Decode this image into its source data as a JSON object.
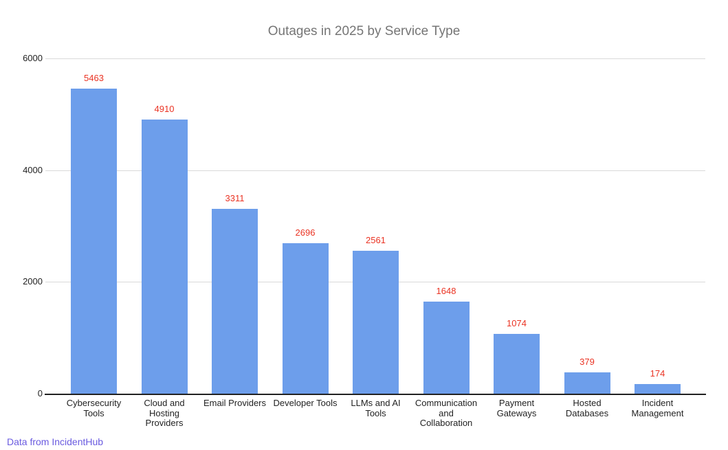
{
  "chart_data": {
    "type": "bar",
    "title": "Outages in 2025 by Service Type",
    "categories": [
      "Cybersecurity Tools",
      "Cloud and Hosting Providers",
      "Email Providers",
      "Developer Tools",
      "LLMs and AI Tools",
      "Communication and Collaboration",
      "Payment Gateways",
      "Hosted Databases",
      "Incident Management"
    ],
    "category_lines": [
      [
        "Cybersecurity",
        "Tools"
      ],
      [
        "Cloud and",
        "Hosting",
        "Providers"
      ],
      [
        "Email Providers"
      ],
      [
        "Developer Tools"
      ],
      [
        "LLMs and AI",
        "Tools"
      ],
      [
        "Communication",
        "and",
        "Collaboration"
      ],
      [
        "Payment",
        "Gateways"
      ],
      [
        "Hosted",
        "Databases"
      ],
      [
        "Incident",
        "Management"
      ]
    ],
    "values": [
      5463,
      4910,
      3311,
      2696,
      2561,
      1648,
      1074,
      379,
      174
    ],
    "value_labels": [
      "5463",
      "4910",
      "3311",
      "2696",
      "2561",
      "1648",
      "1074",
      "379",
      "174"
    ],
    "xlabel": "",
    "ylabel": "",
    "ylim": [
      0,
      6000
    ],
    "yticks": [
      0,
      2000,
      4000,
      6000
    ],
    "ytick_labels": [
      "0",
      "2000",
      "4000",
      "6000"
    ],
    "grid": true,
    "legend": "none",
    "colors": {
      "bar": "#6d9eeb",
      "value_label": "#ea3323",
      "title": "#757575",
      "axis_text": "#222222",
      "gridline": "#d9d9d9",
      "baseline": "#212121"
    }
  },
  "footer": {
    "source_text": "Data from IncidentHub",
    "color": "#6a5be0"
  }
}
